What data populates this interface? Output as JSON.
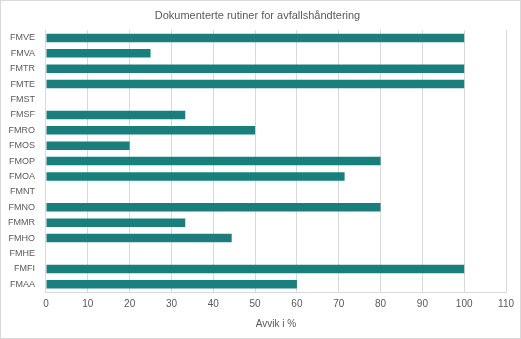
{
  "chart_data": {
    "type": "bar",
    "orientation": "horizontal",
    "title": "Dokumenterte rutiner for avfallshåndtering",
    "x_label": "Avvik i %",
    "categories": [
      "FMVE",
      "FMVA",
      "FMTR",
      "FMTE",
      "FMST",
      "FMSF",
      "FMRO",
      "FMOS",
      "FMOP",
      "FMOA",
      "FMNT",
      "FMNO",
      "FMMR",
      "FMHO",
      "FMHE",
      "FMFI",
      "FMAA"
    ],
    "values": [
      100,
      25,
      100,
      100,
      0,
      33.3,
      50,
      20,
      80,
      71.4,
      0,
      80,
      33.3,
      44.4,
      0,
      100,
      60
    ],
    "color": "#1a7f7c",
    "xlim": [
      0,
      110
    ],
    "xticks": [
      0,
      10,
      20,
      30,
      40,
      50,
      60,
      70,
      80,
      90,
      100,
      110
    ],
    "grid": true
  }
}
